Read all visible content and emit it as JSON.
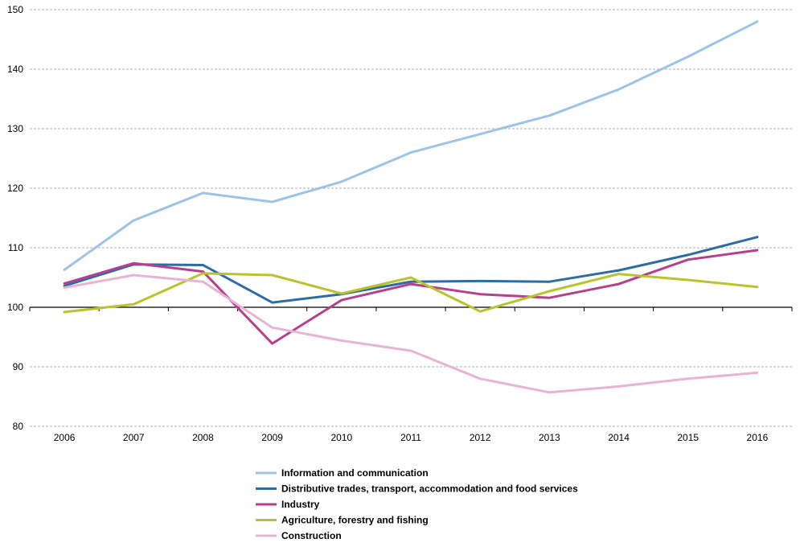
{
  "chart_data": {
    "type": "line",
    "x": [
      "2006",
      "2007",
      "2008",
      "2009",
      "2010",
      "2011",
      "2012",
      "2013",
      "2014",
      "2015",
      "2016"
    ],
    "ylim": [
      80,
      150
    ],
    "yticks": [
      80,
      90,
      100,
      110,
      120,
      130,
      140,
      150
    ],
    "grid": true,
    "baseline": 100,
    "legend_position": "bottom",
    "series": [
      {
        "name": "Information and communication",
        "color": "#9dc3e6",
        "values": [
          106.3,
          114.6,
          119.2,
          117.7,
          121.1,
          126.0,
          129.1,
          132.2,
          136.6,
          142.1,
          148.0
        ]
      },
      {
        "name": "Distributive trades, transport, accommodation and food services",
        "color": "#2e6da4",
        "values": [
          103.6,
          107.2,
          107.1,
          100.8,
          102.2,
          104.3,
          104.4,
          104.3,
          106.2,
          108.8,
          111.8
        ]
      },
      {
        "name": "Industry",
        "color": "#b5418e",
        "values": [
          104.0,
          107.4,
          106.0,
          93.9,
          101.2,
          103.9,
          102.2,
          101.6,
          103.9,
          108.0,
          109.6
        ]
      },
      {
        "name": "Agriculture, forestry and fishing",
        "color": "#b8c42b",
        "values": [
          99.2,
          100.5,
          105.7,
          105.4,
          102.3,
          105.0,
          99.3,
          102.7,
          105.6,
          104.6,
          103.4
        ]
      },
      {
        "name": "Construction",
        "color": "#e8b4d4",
        "values": [
          103.3,
          105.4,
          104.3,
          96.6,
          94.4,
          92.7,
          88.0,
          85.7,
          86.7,
          88.0,
          89.0
        ]
      }
    ]
  }
}
